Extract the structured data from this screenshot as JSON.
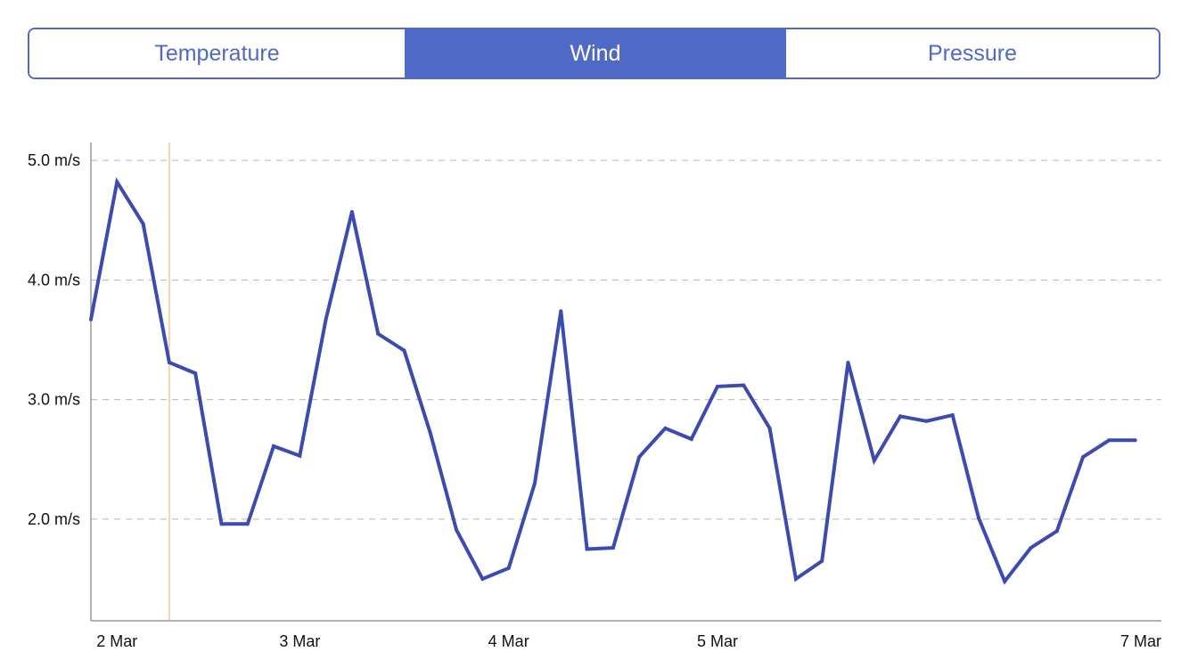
{
  "tabs": [
    {
      "label": "Temperature",
      "selected": false
    },
    {
      "label": "Wind",
      "selected": true
    },
    {
      "label": "Pressure",
      "selected": false
    }
  ],
  "colors": {
    "accent": "#5069c6",
    "line": "#3c4bb0",
    "cursor": "#f5c98a",
    "grid": "#b5b5b5",
    "axis": "#999999"
  },
  "chart_data": {
    "type": "line",
    "title": "",
    "xlabel": "",
    "ylabel": "",
    "ylim": [
      1.15,
      5.15
    ],
    "yticks": [
      {
        "value": 2.0,
        "label": "2.0 m/s"
      },
      {
        "value": 3.0,
        "label": "3.0 m/s"
      },
      {
        "value": 4.0,
        "label": "4.0 m/s"
      },
      {
        "value": 5.0,
        "label": "5.0 m/s"
      }
    ],
    "xlim": [
      "2 Mar 00:00",
      "7 Mar 03:00"
    ],
    "xticks": [
      {
        "value": "2 Mar 03:00",
        "label": "2 Mar"
      },
      {
        "value": "3 Mar 00:00",
        "label": "3 Mar"
      },
      {
        "value": "4 Mar 00:00",
        "label": "4 Mar"
      },
      {
        "value": "5 Mar 00:00",
        "label": "5 Mar"
      },
      {
        "value": "7 Mar 00:00",
        "label": "7 Mar"
      }
    ],
    "grid": "horizontal dashed",
    "cursor_x": "2 Mar 09:00",
    "series": [
      {
        "x": [
          "2 Mar 00:00",
          "2 Mar 03:00",
          "2 Mar 06:00",
          "2 Mar 09:00",
          "2 Mar 12:00",
          "2 Mar 15:00",
          "2 Mar 18:00",
          "2 Mar 21:00",
          "3 Mar 00:00",
          "3 Mar 03:00",
          "3 Mar 06:00",
          "3 Mar 09:00",
          "3 Mar 12:00",
          "3 Mar 15:00",
          "3 Mar 18:00",
          "3 Mar 21:00",
          "4 Mar 00:00",
          "4 Mar 03:00",
          "4 Mar 06:00",
          "4 Mar 09:00",
          "4 Mar 12:00",
          "4 Mar 15:00",
          "4 Mar 18:00",
          "4 Mar 21:00",
          "5 Mar 00:00",
          "5 Mar 03:00",
          "5 Mar 06:00",
          "5 Mar 09:00",
          "5 Mar 12:00",
          "5 Mar 15:00",
          "5 Mar 18:00",
          "5 Mar 21:00",
          "6 Mar 00:00",
          "6 Mar 03:00",
          "6 Mar 06:00",
          "6 Mar 09:00",
          "6 Mar 12:00",
          "6 Mar 15:00",
          "6 Mar 18:00",
          "6 Mar 21:00",
          "7 Mar 00:00"
        ],
        "y": [
          3.67,
          4.82,
          4.47,
          3.31,
          3.22,
          1.96,
          1.96,
          2.61,
          2.53,
          3.67,
          4.57,
          3.55,
          3.41,
          2.72,
          1.91,
          1.5,
          1.59,
          2.3,
          3.74,
          1.75,
          1.76,
          2.52,
          2.76,
          2.67,
          3.11,
          3.12,
          2.76,
          1.5,
          1.65,
          3.31,
          2.49,
          2.86,
          2.82,
          2.87,
          2.01,
          1.48,
          1.76,
          1.9,
          2.52,
          2.66,
          2.66
        ]
      }
    ]
  }
}
